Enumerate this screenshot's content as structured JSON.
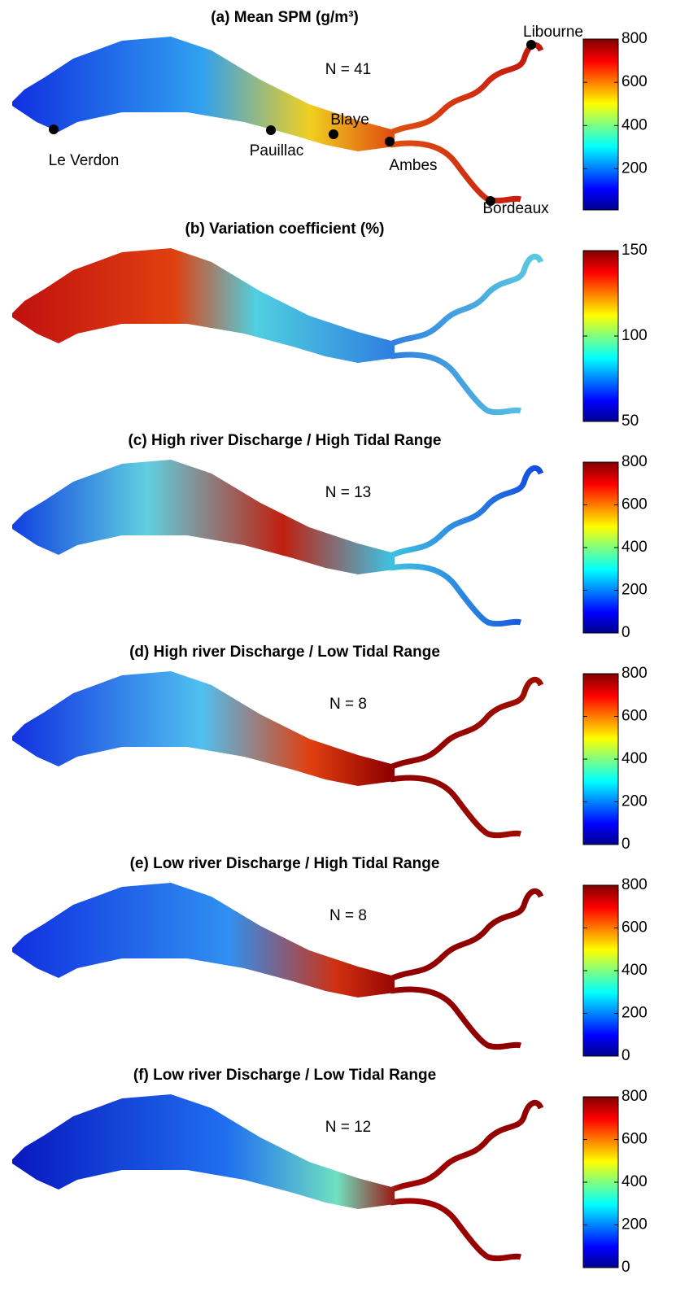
{
  "panels": [
    {
      "title": "(a) Mean SPM (g/m³)",
      "n_label": "N = 41",
      "colorbar": {
        "lim": [
          10,
          800
        ],
        "ticks": [
          200,
          400,
          600,
          800
        ]
      },
      "places": [
        "Le Verdon",
        "Pauillac",
        "Blaye",
        "Ambes",
        "Libourne",
        "Bordeaux"
      ]
    },
    {
      "title": "(b) Variation coefficient (%)",
      "colorbar": {
        "lim": [
          50,
          150
        ],
        "ticks": [
          50,
          100,
          150
        ]
      }
    },
    {
      "title": "(c) High river Discharge / High Tidal Range",
      "n_label": "N = 13",
      "colorbar": {
        "lim": [
          0,
          800
        ],
        "ticks": [
          0,
          200,
          400,
          600,
          800
        ]
      }
    },
    {
      "title": "(d) High river Discharge / Low Tidal Range",
      "n_label": "N = 8",
      "colorbar": {
        "lim": [
          0,
          800
        ],
        "ticks": [
          0,
          200,
          400,
          600,
          800
        ]
      }
    },
    {
      "title": "(e) Low river Discharge / High Tidal Range",
      "n_label": "N = 8",
      "colorbar": {
        "lim": [
          0,
          800
        ],
        "ticks": [
          0,
          200,
          400,
          600,
          800
        ]
      }
    },
    {
      "title": "(f) Low river Discharge / Low Tidal Range",
      "n_label": "N = 12",
      "colorbar": {
        "lim": [
          0,
          800
        ],
        "ticks": [
          0,
          200,
          400,
          600,
          800
        ]
      }
    }
  ]
}
